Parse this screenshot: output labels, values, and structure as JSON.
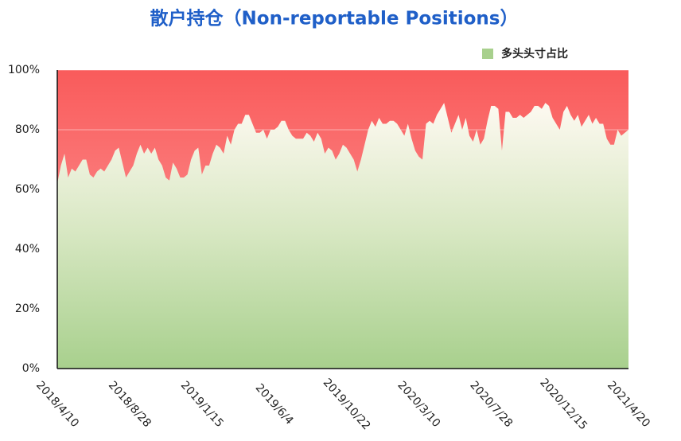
{
  "chart_data": {
    "type": "area",
    "title": "散户持仓（Non-reportable Positions）",
    "categories": [
      "2018/4/10",
      null,
      null,
      null,
      null,
      null,
      null,
      null,
      null,
      null,
      null,
      null,
      null,
      null,
      null,
      null,
      null,
      null,
      null,
      null,
      "2018/8/28",
      null,
      null,
      null,
      null,
      null,
      null,
      null,
      null,
      null,
      null,
      null,
      null,
      null,
      null,
      null,
      null,
      null,
      null,
      null,
      "2019/1/15",
      null,
      null,
      null,
      null,
      null,
      null,
      null,
      null,
      null,
      null,
      null,
      null,
      null,
      null,
      null,
      null,
      null,
      null,
      null,
      "2019/6/4",
      null,
      null,
      null,
      null,
      null,
      null,
      null,
      null,
      null,
      null,
      null,
      null,
      null,
      null,
      null,
      null,
      null,
      null,
      null,
      "2019/10/22",
      null,
      null,
      null,
      null,
      null,
      null,
      null,
      null,
      null,
      null,
      null,
      null,
      null,
      null,
      null,
      null,
      null,
      null,
      null,
      "2020/3/10",
      null,
      null,
      null,
      null,
      null,
      null,
      null,
      null,
      null,
      null,
      null,
      null,
      null,
      null,
      null,
      null,
      null,
      null,
      null,
      "2020/7/28",
      null,
      null,
      null,
      null,
      null,
      null,
      null,
      null,
      null,
      null,
      null,
      null,
      null,
      null,
      null,
      null,
      null,
      null,
      null,
      "2020/12/15",
      null,
      null,
      null,
      null,
      null,
      null,
      null,
      null,
      null,
      null,
      null,
      null,
      null,
      null,
      null,
      null,
      null,
      "2021/4/20"
    ],
    "series": [
      {
        "name": "多头头寸占比",
        "color": "#a8d08d",
        "values": [
          62,
          68,
          72,
          64,
          67,
          66,
          68,
          70,
          70,
          65,
          64,
          66,
          67,
          66,
          68,
          70,
          73,
          74,
          69,
          64,
          66,
          68,
          72,
          75,
          72,
          74,
          72,
          74,
          70,
          68,
          64,
          63,
          69,
          67,
          64,
          64,
          65,
          70,
          73,
          74,
          65,
          68,
          68,
          72,
          75,
          74,
          72,
          78,
          75,
          80,
          82,
          82,
          85,
          85,
          82,
          79,
          79,
          80,
          77,
          80,
          80,
          81,
          83,
          83,
          80,
          78,
          77,
          77,
          77,
          79,
          78,
          76,
          79,
          77,
          72,
          74,
          73,
          70,
          72,
          75,
          74,
          72,
          70,
          66,
          70,
          75,
          80,
          83,
          81,
          84,
          82,
          82,
          83,
          83,
          82,
          80,
          78,
          82,
          77,
          73,
          71,
          70,
          82,
          83,
          82,
          85,
          87,
          89,
          84,
          79,
          82,
          85,
          80,
          84,
          78,
          76,
          80,
          75,
          77,
          83,
          88,
          88,
          87,
          73,
          86,
          86,
          84,
          84,
          85,
          84,
          85,
          86,
          88,
          88,
          87,
          89,
          88,
          84,
          82,
          80,
          86,
          88,
          85,
          83,
          85,
          81,
          83,
          85,
          82,
          84,
          82,
          82,
          77,
          75,
          75,
          80,
          78,
          79,
          80
        ]
      }
    ],
    "remainder_color": "#f95b5b",
    "ylim": [
      0,
      100
    ],
    "yticks": [
      {
        "value": 0,
        "label": "0%"
      },
      {
        "value": 20,
        "label": "20%"
      },
      {
        "value": 40,
        "label": "40%"
      },
      {
        "value": 60,
        "label": "60%"
      },
      {
        "value": 80,
        "label": "80%"
      },
      {
        "value": 100,
        "label": "100%"
      }
    ],
    "grid": true,
    "legend": "top-right"
  }
}
